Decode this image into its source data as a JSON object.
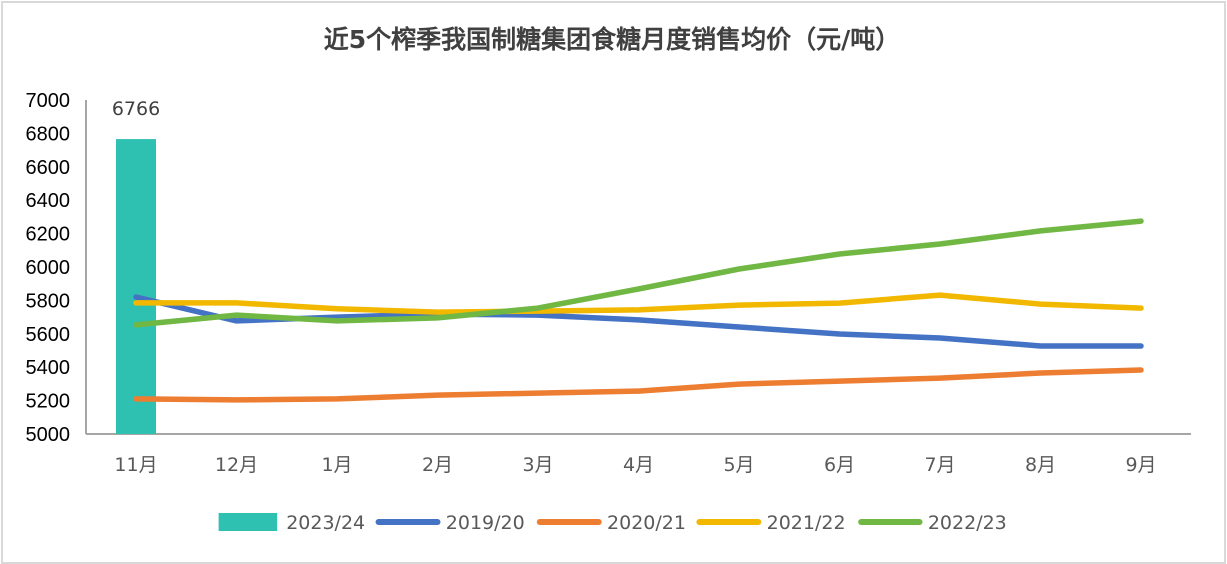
{
  "chart_data": {
    "type": "line",
    "title": "近5个榨季我国制糖集团食糖月度销售均价（元/吨）",
    "xlabel": "",
    "ylabel": "",
    "ylim": [
      5000,
      7000
    ],
    "yticks": [
      "7000",
      "6800",
      "6600",
      "6400",
      "6200",
      "6000",
      "5800",
      "5600",
      "5400",
      "5200",
      "5000"
    ],
    "ytick_values": [
      7000,
      6800,
      6600,
      6400,
      6200,
      6000,
      5800,
      5600,
      5400,
      5200,
      5000
    ],
    "categories": [
      "11月",
      "12月",
      "1月",
      "2月",
      "3月",
      "4月",
      "5月",
      "6月",
      "7月",
      "8月",
      "9月"
    ],
    "grid": false,
    "legend_position": "bottom",
    "bar_series": {
      "name": "2023/24",
      "type": "bar",
      "color": "#2ec0b1",
      "values": [
        6766
      ],
      "data_labels": [
        "6766"
      ]
    },
    "series": [
      {
        "name": "2019/20",
        "type": "line",
        "color": "#4472c4",
        "values": [
          5820,
          5677,
          5700,
          5718,
          5712,
          5683,
          5641,
          5599,
          5575,
          5527,
          5527
        ]
      },
      {
        "name": "2020/21",
        "type": "line",
        "color": "#ed7d31",
        "values": [
          5210,
          5204,
          5210,
          5233,
          5245,
          5257,
          5299,
          5317,
          5335,
          5365,
          5383
        ]
      },
      {
        "name": "2021/22",
        "type": "line",
        "color": "#f2b800",
        "values": [
          5785,
          5785,
          5750,
          5730,
          5736,
          5743,
          5772,
          5784,
          5832,
          5778,
          5754
        ]
      },
      {
        "name": "2022/23",
        "type": "line",
        "color": "#70b843",
        "values": [
          5653,
          5712,
          5677,
          5695,
          5754,
          5868,
          5988,
          6078,
          6138,
          6216,
          6275
        ]
      }
    ],
    "legend": [
      "2023/24",
      "2019/20",
      "2020/21",
      "2021/22",
      "2022/23"
    ]
  }
}
